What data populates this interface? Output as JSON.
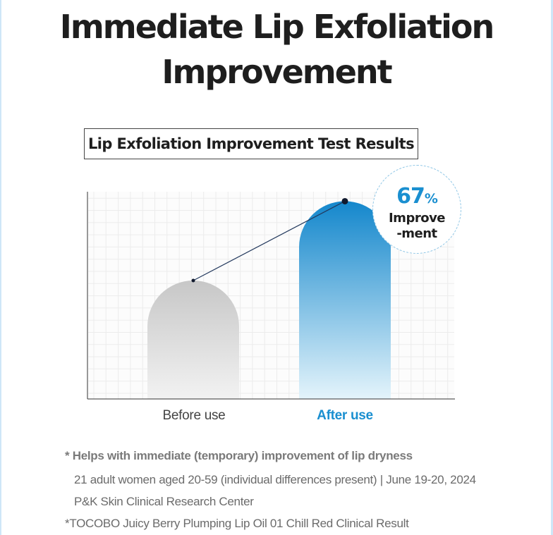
{
  "title": {
    "line1": "Immediate Lip Exfoliation",
    "line2": "Improvement"
  },
  "chart_data": {
    "type": "bar",
    "title": "Lip Exfoliation Improvement Test Results",
    "categories": [
      "Before use",
      "After use"
    ],
    "values": [
      100,
      167
    ],
    "ylim": [
      0,
      200
    ],
    "grid": true,
    "colors": {
      "before_top": "#c7c7c7",
      "before_bottom": "#f2f2f2",
      "after_top": "#1487cc",
      "after_bottom": "#e4f4fb",
      "line": "#23395d",
      "highlight_label": "#1a8fd0"
    },
    "annotation": {
      "value": "67",
      "unit": "%",
      "label_line1": "Improve",
      "label_line2": "-ment"
    }
  },
  "notes": {
    "main": "* Helps with immediate (temporary) improvement of lip dryness",
    "sub1": "21 adult women aged 20-59 (individual differences present)  |  June 19-20, 2024",
    "sub2": "P&K Skin Clinical Research Center",
    "main2": "*TOCOBO Juicy Berry Plumping Lip Oil 01 Chill Red Clinical Result"
  }
}
